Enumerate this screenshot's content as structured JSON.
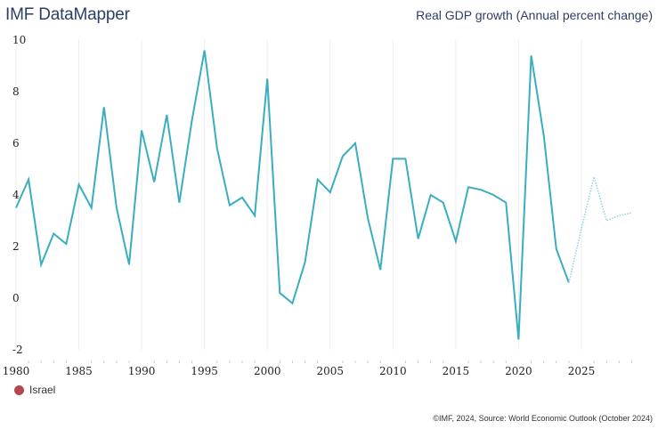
{
  "header": {
    "app_title": "IMF DataMapper",
    "indicator_title": "Real GDP growth (Annual percent change)"
  },
  "legend": {
    "items": [
      {
        "label": "Israel",
        "color": "#b5454f"
      }
    ]
  },
  "footer": {
    "source": "©IMF, 2024, Source: World Economic Outlook (October 2024)"
  },
  "colors": {
    "line": "#3aaebf",
    "projection_line": "#8fd3de",
    "grid": "#eeeeee"
  },
  "chart_data": {
    "type": "line",
    "title": "Real GDP growth (Annual percent change)",
    "xlabel": "",
    "ylabel": "",
    "xlim": [
      1980,
      2029
    ],
    "ylim": [
      -2,
      10
    ],
    "grid": true,
    "legend_position": "bottom-left",
    "x_ticks": [
      "1980",
      "1985",
      "1990",
      "1995",
      "2000",
      "2005",
      "2010",
      "2015",
      "2020",
      "2025"
    ],
    "x_tick_values": [
      1980,
      1985,
      1990,
      1995,
      2000,
      2005,
      2010,
      2015,
      2020,
      2025
    ],
    "y_ticks": [
      "10",
      "8",
      "6",
      "4",
      "2",
      "0",
      "-2"
    ],
    "y_tick_values": [
      10,
      8,
      6,
      4,
      2,
      0,
      -2
    ],
    "series": [
      {
        "name": "Israel",
        "kind": "actual",
        "x": [
          1980,
          1981,
          1982,
          1983,
          1984,
          1985,
          1986,
          1987,
          1988,
          1989,
          1990,
          1991,
          1992,
          1993,
          1994,
          1995,
          1996,
          1997,
          1998,
          1999,
          2000,
          2001,
          2002,
          2003,
          2004,
          2005,
          2006,
          2007,
          2008,
          2009,
          2010,
          2011,
          2012,
          2013,
          2014,
          2015,
          2016,
          2017,
          2018,
          2019,
          2020,
          2021,
          2022,
          2023,
          2024
        ],
        "values": [
          3.5,
          4.6,
          1.3,
          2.5,
          2.1,
          4.4,
          3.5,
          7.4,
          3.5,
          1.3,
          6.5,
          4.5,
          7.1,
          3.7,
          6.9,
          9.6,
          5.8,
          3.6,
          3.9,
          3.2,
          8.5,
          0.2,
          -0.2,
          1.4,
          4.6,
          4.1,
          5.5,
          6.0,
          3.1,
          1.1,
          5.4,
          5.4,
          2.3,
          4.0,
          3.7,
          2.2,
          4.3,
          4.2,
          4.0,
          3.7,
          -1.6,
          9.4,
          6.3,
          1.9,
          0.6
        ]
      },
      {
        "name": "Israel (projection)",
        "kind": "projection",
        "x": [
          2024,
          2025,
          2026,
          2027,
          2028,
          2029
        ],
        "values": [
          0.6,
          2.7,
          4.7,
          3.0,
          3.2,
          3.3
        ]
      }
    ]
  }
}
